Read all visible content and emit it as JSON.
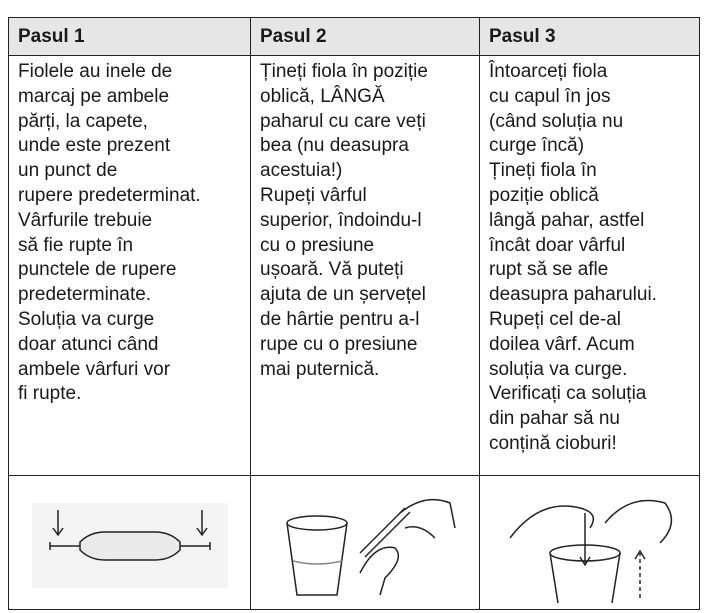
{
  "table": {
    "header": [
      "Pasul 1",
      "Pasul 2",
      "Pasul 3"
    ],
    "rows": [
      [
        [
          "Fiolele au inele de",
          "marcaj pe ambele",
          "părți, la capete,",
          "unde este prezent",
          "un punct de",
          "rupere predeterminat.",
          "Vârfurile trebuie",
          "să fie rupte în",
          "punctele de rupere",
          "predeterminate.",
          "Soluția va curge",
          "doar atunci când",
          "ambele vârfuri vor",
          "fi rupte."
        ],
        [
          "Țineți fiola în poziție",
          "oblică, LÂNGĂ",
          "paharul cu care veți",
          "bea (nu deasupra",
          "acestuia!)",
          "Rupeți vârful",
          "superior, îndoindu-l",
          "cu o presiune",
          "ușoară. Vă puteți",
          "ajuta de un șervețel",
          "de hârtie pentru a-l",
          "rupe cu o presiune",
          "mai puternică."
        ],
        [
          "Întoarceți fiola",
          "cu capul în jos",
          "(când soluția nu",
          "curge încă)",
          "Țineți fiola în",
          "poziție oblică",
          "lângă pahar, astfel",
          "încât doar vârful",
          "rupt să se afle",
          "deasupra paharului.",
          "Rupeți cel de-al",
          "doilea vârf. Acum",
          "soluția va curge.",
          "Verificați ca soluția",
          "din pahar să nu",
          "conțină cioburi!"
        ]
      ]
    ]
  }
}
